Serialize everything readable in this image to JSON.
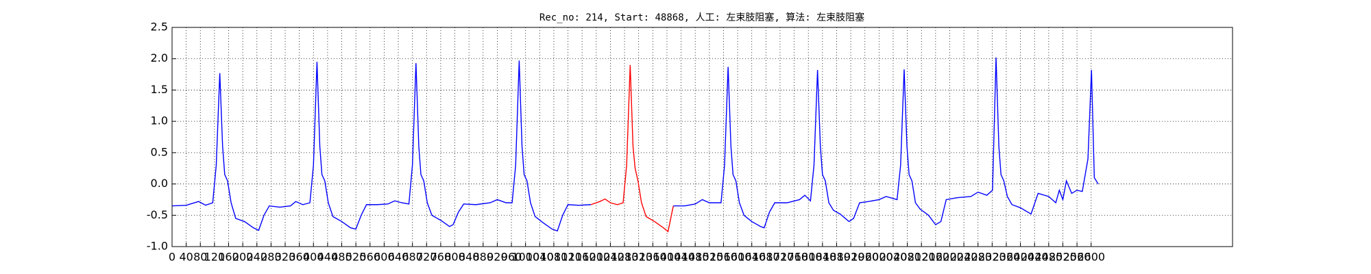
{
  "chart_data": {
    "type": "line",
    "title": "Rec_no: 214, Start: 48868, 人工: 左束肢阻塞, 算法: 左束肢阻塞",
    "xlim": [
      0,
      3000
    ],
    "ylim": [
      -1.0,
      2.5
    ],
    "xticks": [
      0,
      40,
      80,
      120,
      160,
      200,
      240,
      280,
      320,
      360,
      400,
      440,
      480,
      520,
      560,
      600,
      640,
      680,
      720,
      760,
      800,
      840,
      880,
      920,
      960,
      1000,
      1040,
      1080,
      1120,
      1160,
      1200,
      1240,
      1280,
      1320,
      1360,
      1400,
      1440,
      1480,
      1520,
      1560,
      1600,
      1640,
      1680,
      1720,
      1760,
      1800,
      1840,
      1880,
      1920,
      1960,
      2000,
      2040,
      2080,
      2120,
      2160,
      2200,
      2240,
      2280,
      2320,
      2360,
      2400,
      2440,
      2480,
      2520,
      2560,
      2600
    ],
    "yticks": [
      {
        "value": -1.0,
        "label": "-1.0"
      },
      -0.5,
      {
        "value": 0.0,
        "label": "0.0"
      },
      0.5,
      {
        "value": 1.0,
        "label": "1.0"
      },
      1.5,
      {
        "value": 2.0,
        "label": "2.0"
      },
      2.5
    ],
    "grid": true,
    "series": [
      {
        "color": "#0000ff",
        "x": [
          0,
          40,
          75,
          95,
          115,
          125,
          135,
          143,
          149,
          157,
          167,
          180,
          205,
          230,
          245,
          260,
          275,
          305,
          335,
          350,
          370,
          390,
          400,
          410,
          418,
          424,
          432,
          442,
          455,
          480,
          505,
          520,
          535,
          550,
          580,
          610,
          630,
          650,
          670,
          680,
          690,
          698,
          704,
          712,
          722,
          735,
          760,
          785,
          795,
          810,
          825,
          860,
          900,
          920,
          945,
          962,
          972,
          982,
          990,
          996,
          1004,
          1014,
          1027,
          1050,
          1075,
          1090,
          1105,
          1120,
          1150,
          1185
        ],
        "values": [
          -0.35,
          -0.34,
          -0.28,
          -0.34,
          -0.3,
          0.3,
          1.77,
          0.6,
          0.15,
          0.05,
          -0.3,
          -0.55,
          -0.6,
          -0.7,
          -0.74,
          -0.5,
          -0.35,
          -0.37,
          -0.35,
          -0.28,
          -0.33,
          -0.3,
          0.3,
          1.95,
          0.6,
          0.15,
          0.05,
          -0.3,
          -0.52,
          -0.6,
          -0.7,
          -0.72,
          -0.5,
          -0.33,
          -0.33,
          -0.32,
          -0.27,
          -0.3,
          -0.32,
          0.3,
          1.93,
          0.6,
          0.15,
          0.05,
          -0.3,
          -0.5,
          -0.58,
          -0.68,
          -0.65,
          -0.45,
          -0.32,
          -0.33,
          -0.3,
          -0.25,
          -0.3,
          -0.3,
          0.3,
          1.97,
          0.6,
          0.15,
          0.05,
          -0.3,
          -0.52,
          -0.62,
          -0.72,
          -0.75,
          -0.5,
          -0.33,
          -0.34,
          -0.33
        ]
      },
      {
        "color": "#ff0000",
        "x": [
          1185,
          1210,
          1225,
          1240,
          1260,
          1276,
          1286,
          1296,
          1304,
          1310,
          1318,
          1328,
          1341,
          1365,
          1390,
          1403,
          1418
        ],
        "values": [
          -0.33,
          -0.28,
          -0.24,
          -0.3,
          -0.33,
          -0.3,
          0.3,
          1.9,
          0.6,
          0.25,
          0.05,
          -0.3,
          -0.52,
          -0.6,
          -0.7,
          -0.76,
          -0.35
        ]
      },
      {
        "color": "#0000ff",
        "x": [
          1418,
          1450,
          1480,
          1500,
          1520,
          1553,
          1563,
          1573,
          1581,
          1587,
          1595,
          1605,
          1618,
          1640,
          1665,
          1675,
          1690,
          1705,
          1740,
          1775,
          1790,
          1806,
          1816,
          1826,
          1834,
          1840,
          1848,
          1858,
          1871,
          1890,
          1915,
          1928,
          1945,
          1970,
          2000,
          2020,
          2051,
          2061,
          2071,
          2079,
          2085,
          2093,
          2103,
          2116,
          2140,
          2160,
          2175,
          2190,
          2220,
          2260,
          2280,
          2305,
          2321,
          2331,
          2339,
          2345,
          2353,
          2363,
          2376,
          2400,
          2430,
          2450,
          2480,
          2500,
          2510,
          2520,
          2530,
          2545,
          2560,
          2575,
          2591,
          2601,
          2609,
          2620
        ],
        "values": [
          -0.35,
          -0.35,
          -0.32,
          -0.25,
          -0.3,
          -0.3,
          0.3,
          1.87,
          0.6,
          0.15,
          0.05,
          -0.3,
          -0.5,
          -0.6,
          -0.68,
          -0.7,
          -0.45,
          -0.3,
          -0.3,
          -0.25,
          -0.18,
          -0.27,
          0.3,
          1.82,
          0.6,
          0.15,
          0.05,
          -0.3,
          -0.42,
          -0.48,
          -0.6,
          -0.55,
          -0.3,
          -0.28,
          -0.25,
          -0.2,
          -0.25,
          0.3,
          1.83,
          0.6,
          0.15,
          0.05,
          -0.3,
          -0.4,
          -0.5,
          -0.65,
          -0.6,
          -0.25,
          -0.22,
          -0.2,
          -0.13,
          -0.18,
          -0.1,
          2.02,
          0.6,
          0.15,
          0.05,
          -0.2,
          -0.33,
          -0.38,
          -0.48,
          -0.15,
          -0.2,
          -0.3,
          -0.1,
          -0.25,
          0.05,
          -0.15,
          -0.1,
          -0.12,
          0.4,
          1.82,
          0.1,
          0
        ]
      }
    ]
  }
}
